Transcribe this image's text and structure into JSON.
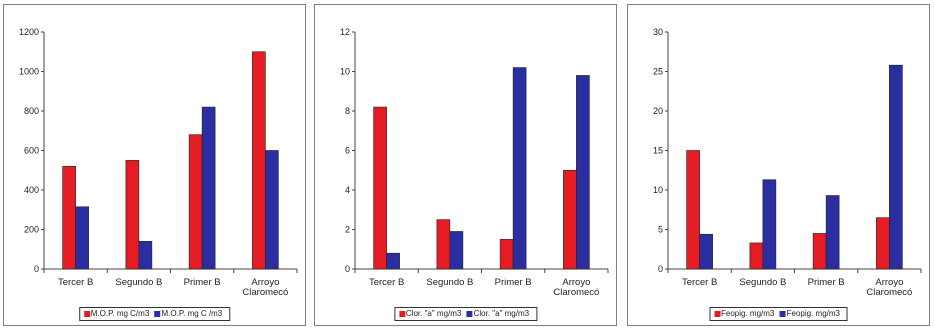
{
  "colors": {
    "red": "#e51c23",
    "blue": "#2b2ea0"
  },
  "chart_data": [
    {
      "type": "bar",
      "categories": [
        "Tercer B",
        "Segundo B",
        "Primer B",
        "Arroyo Claromecó"
      ],
      "series": [
        {
          "name": "M.O.P.  mg C/m3",
          "values": [
            520,
            550,
            680,
            1100
          ]
        },
        {
          "name": "M.O.P.  mg C /m3",
          "values": [
            315,
            140,
            820,
            600
          ]
        }
      ],
      "ylim": [
        0,
        1200
      ],
      "yticks": [
        "0",
        "200",
        "400",
        "600",
        "800",
        "1000",
        "1200"
      ],
      "legend_position": "bottom"
    },
    {
      "type": "bar",
      "categories": [
        "Tercer B",
        "Segundo B",
        "Primer B",
        "Arroyo Claromecó"
      ],
      "series": [
        {
          "name": "Clor. \"a\" mg/m3",
          "values": [
            8.2,
            2.5,
            1.5,
            5.0
          ]
        },
        {
          "name": "Clor. \"a\" mg/m3",
          "values": [
            0.8,
            1.9,
            10.2,
            9.8
          ]
        }
      ],
      "ylim": [
        0,
        12
      ],
      "yticks": [
        "0",
        "2",
        "4",
        "6",
        "8",
        "10",
        "12"
      ],
      "legend_position": "bottom"
    },
    {
      "type": "bar",
      "categories": [
        "Tercer B",
        "Segundo B",
        "Primer B",
        "Arroyo Claromecó"
      ],
      "series": [
        {
          "name": "Feopig. mg/m3",
          "values": [
            15,
            3.3,
            4.5,
            6.5
          ]
        },
        {
          "name": "Feopig. mg/m3",
          "values": [
            4.4,
            11.3,
            9.3,
            25.8
          ]
        }
      ],
      "ylim": [
        0,
        30
      ],
      "yticks": [
        "0",
        "5",
        "10",
        "15",
        "20",
        "25",
        "30"
      ],
      "legend_position": "bottom"
    }
  ]
}
